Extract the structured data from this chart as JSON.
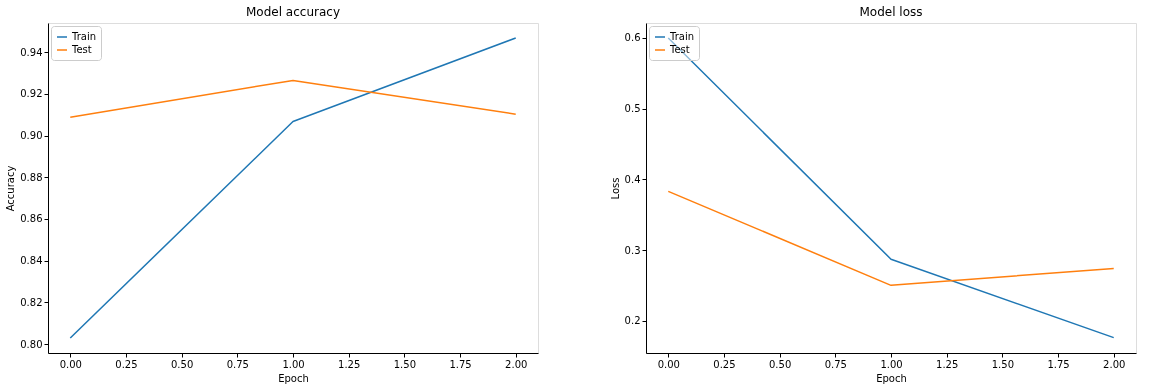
{
  "chart_data": [
    {
      "type": "line",
      "title": "Model accuracy",
      "xlabel": "Epoch",
      "ylabel": "Accuracy",
      "x": [
        0,
        1,
        2
      ],
      "series": [
        {
          "name": "Train",
          "color": "#1f77b4",
          "values": [
            0.803,
            0.9067,
            0.9467
          ]
        },
        {
          "name": "Test",
          "color": "#ff7f0e",
          "values": [
            0.9088,
            0.9264,
            0.9102
          ]
        }
      ],
      "xlim": [
        -0.1,
        2.1
      ],
      "ylim": [
        0.7958,
        0.9539
      ],
      "xticks": [
        {
          "value": 0,
          "label": "0.00"
        },
        {
          "value": 0.25,
          "label": "0.25"
        },
        {
          "value": 0.5,
          "label": "0.50"
        },
        {
          "value": 0.75,
          "label": "0.75"
        },
        {
          "value": 1,
          "label": "1.00"
        },
        {
          "value": 1.25,
          "label": "1.25"
        },
        {
          "value": 1.5,
          "label": "1.50"
        },
        {
          "value": 1.75,
          "label": "1.75"
        },
        {
          "value": 2,
          "label": "2.00"
        }
      ],
      "yticks": [
        {
          "value": 0.8,
          "label": "0.80"
        },
        {
          "value": 0.82,
          "label": "0.82"
        },
        {
          "value": 0.84,
          "label": "0.84"
        },
        {
          "value": 0.86,
          "label": "0.86"
        },
        {
          "value": 0.88,
          "label": "0.88"
        },
        {
          "value": 0.9,
          "label": "0.90"
        },
        {
          "value": 0.92,
          "label": "0.92"
        },
        {
          "value": 0.94,
          "label": "0.94"
        }
      ],
      "grid": false,
      "legend": "top left",
      "marker": "none",
      "line_style": "solid"
    },
    {
      "type": "line",
      "title": "Model loss",
      "xlabel": "Epoch",
      "ylabel": "Loss",
      "x": [
        0,
        1,
        2
      ],
      "series": [
        {
          "name": "Train",
          "color": "#1f77b4",
          "values": [
            0.6,
            0.287,
            0.176
          ]
        },
        {
          "name": "Test",
          "color": "#ff7f0e",
          "values": [
            0.383,
            0.25,
            0.274
          ]
        }
      ],
      "xlim": [
        -0.1,
        2.1
      ],
      "ylim": [
        0.1543,
        0.6212
      ],
      "xticks": [
        {
          "value": 0,
          "label": "0.00"
        },
        {
          "value": 0.25,
          "label": "0.25"
        },
        {
          "value": 0.5,
          "label": "0.50"
        },
        {
          "value": 0.75,
          "label": "0.75"
        },
        {
          "value": 1,
          "label": "1.00"
        },
        {
          "value": 1.25,
          "label": "1.25"
        },
        {
          "value": 1.5,
          "label": "1.50"
        },
        {
          "value": 1.75,
          "label": "1.75"
        },
        {
          "value": 2,
          "label": "2.00"
        }
      ],
      "yticks": [
        0.2,
        0.3,
        0.4,
        0.5,
        0.6
      ],
      "grid": false,
      "legend": "top left",
      "marker": "none",
      "line_style": "solid"
    }
  ]
}
